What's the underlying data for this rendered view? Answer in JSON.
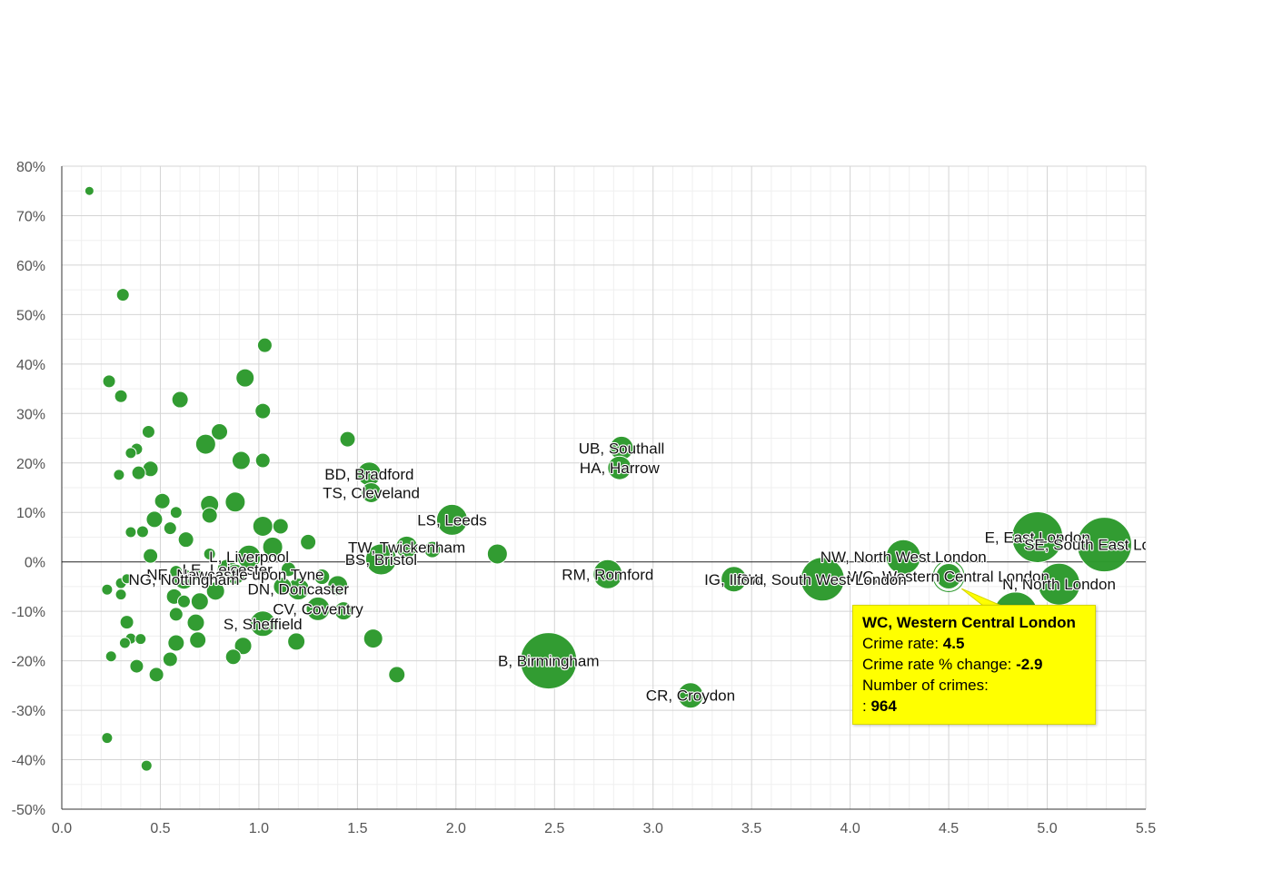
{
  "chart_data": {
    "type": "scatter",
    "xlim": [
      0,
      5.5
    ],
    "ylim": [
      -50,
      80
    ],
    "x_ticks": [
      "0.0",
      "0.5",
      "1.0",
      "1.5",
      "2.0",
      "2.5",
      "3.0",
      "3.5",
      "4.0",
      "4.5",
      "5.0",
      "5.5"
    ],
    "y_ticks": [
      "80%",
      "70%",
      "60%",
      "50%",
      "40%",
      "30%",
      "20%",
      "10%",
      "0%",
      "-10%",
      "-20%",
      "-30%",
      "-40%",
      "-50%"
    ],
    "grid": true,
    "color": "#2e9a2e",
    "labeled_points": [
      {
        "label": "UB, Southall",
        "x": 2.84,
        "y": 23.0,
        "size": 26
      },
      {
        "label": "HA, Harrow",
        "x": 2.83,
        "y": 19.0,
        "size": 26
      },
      {
        "label": "BD, Bradford",
        "x": 1.56,
        "y": 17.8,
        "size": 26
      },
      {
        "label": "TS, Cleveland",
        "x": 1.57,
        "y": 14.0,
        "size": 22
      },
      {
        "label": "LS, Leeds",
        "x": 1.98,
        "y": 8.5,
        "size": 34
      },
      {
        "label": "TW, Twickenham",
        "x": 1.75,
        "y": 3.0,
        "size": 24
      },
      {
        "label": "BS, Bristol",
        "x": 1.62,
        "y": 0.5,
        "size": 34
      },
      {
        "label": "E, East London",
        "x": 4.95,
        "y": 5.0,
        "size": 56
      },
      {
        "label": "SE, South East London",
        "x": 5.29,
        "y": 3.5,
        "size": 60
      },
      {
        "label": "NW, North West London",
        "x": 4.27,
        "y": 1.0,
        "size": 38
      },
      {
        "label": "WC, Western Central London",
        "x": 4.5,
        "y": -2.9,
        "size": 28
      },
      {
        "label": "N, North London",
        "x": 5.06,
        "y": -4.5,
        "size": 46
      },
      {
        "label": "SW, South West London",
        "x": 3.86,
        "y": -3.5,
        "size": 48
      },
      {
        "label": "IG, Ilford",
        "x": 3.41,
        "y": -3.5,
        "size": 28
      },
      {
        "label": "RM, Romford",
        "x": 2.77,
        "y": -2.5,
        "size": 32
      },
      {
        "label": "B, Birmingham",
        "x": 2.47,
        "y": -20.0,
        "size": 62
      },
      {
        "label": "CR, Croydon",
        "x": 3.19,
        "y": -27.0,
        "size": 28
      },
      {
        "label": "L, Liverpool",
        "x": 0.95,
        "y": 1.0,
        "size": 26
      },
      {
        "label": "LE, Leicester",
        "x": 0.84,
        "y": -1.5,
        "size": 22
      },
      {
        "label": "NE, Newcastle upon Tyne",
        "x": 0.88,
        "y": -2.5,
        "size": 22
      },
      {
        "label": "NG, Nottingham",
        "x": 0.62,
        "y": -3.5,
        "size": 22
      },
      {
        "label": "DN, Doncaster",
        "x": 1.2,
        "y": -5.5,
        "size": 24
      },
      {
        "label": "CV, Coventry",
        "x": 1.3,
        "y": -9.5,
        "size": 26
      },
      {
        "label": "S, Sheffield",
        "x": 1.02,
        "y": -12.5,
        "size": 28
      }
    ],
    "points": [
      {
        "x": 0.14,
        "y": 75,
        "size": 10
      },
      {
        "x": 0.31,
        "y": 54,
        "size": 14
      },
      {
        "x": 1.03,
        "y": 43.8,
        "size": 16
      },
      {
        "x": 0.24,
        "y": 36.5,
        "size": 14
      },
      {
        "x": 0.93,
        "y": 37.2,
        "size": 20
      },
      {
        "x": 0.3,
        "y": 33.5,
        "size": 14
      },
      {
        "x": 0.6,
        "y": 32.8,
        "size": 18
      },
      {
        "x": 1.02,
        "y": 30.5,
        "size": 17
      },
      {
        "x": 0.44,
        "y": 26.3,
        "size": 14
      },
      {
        "x": 0.8,
        "y": 26.3,
        "size": 18
      },
      {
        "x": 0.73,
        "y": 23.8,
        "size": 22
      },
      {
        "x": 1.45,
        "y": 24.8,
        "size": 17
      },
      {
        "x": 0.38,
        "y": 22.8,
        "size": 13
      },
      {
        "x": 0.35,
        "y": 22.0,
        "size": 12
      },
      {
        "x": 0.91,
        "y": 20.5,
        "size": 20
      },
      {
        "x": 1.02,
        "y": 20.5,
        "size": 16
      },
      {
        "x": 0.45,
        "y": 18.8,
        "size": 17
      },
      {
        "x": 0.39,
        "y": 18.0,
        "size": 15
      },
      {
        "x": 0.29,
        "y": 17.6,
        "size": 12
      },
      {
        "x": 0.51,
        "y": 12.3,
        "size": 17
      },
      {
        "x": 0.75,
        "y": 11.6,
        "size": 20
      },
      {
        "x": 0.88,
        "y": 12.1,
        "size": 22
      },
      {
        "x": 0.58,
        "y": 10.0,
        "size": 13
      },
      {
        "x": 0.75,
        "y": 9.4,
        "size": 17
      },
      {
        "x": 0.47,
        "y": 8.6,
        "size": 18
      },
      {
        "x": 1.02,
        "y": 7.2,
        "size": 22
      },
      {
        "x": 1.11,
        "y": 7.2,
        "size": 17
      },
      {
        "x": 0.55,
        "y": 6.8,
        "size": 14
      },
      {
        "x": 0.41,
        "y": 6.1,
        "size": 13
      },
      {
        "x": 0.35,
        "y": 6.0,
        "size": 12
      },
      {
        "x": 0.63,
        "y": 4.5,
        "size": 17
      },
      {
        "x": 1.25,
        "y": 4.0,
        "size": 17
      },
      {
        "x": 1.07,
        "y": 3.0,
        "size": 22
      },
      {
        "x": 0.45,
        "y": 1.2,
        "size": 16
      },
      {
        "x": 0.75,
        "y": 1.6,
        "size": 13
      },
      {
        "x": 1.88,
        "y": 2.5,
        "size": 18
      },
      {
        "x": 2.21,
        "y": 1.6,
        "size": 22
      },
      {
        "x": 1.15,
        "y": -1.5,
        "size": 16
      },
      {
        "x": 1.32,
        "y": -3.0,
        "size": 17
      },
      {
        "x": 0.58,
        "y": -2.0,
        "size": 14
      },
      {
        "x": 0.68,
        "y": -2.4,
        "size": 14
      },
      {
        "x": 0.33,
        "y": -3.4,
        "size": 11
      },
      {
        "x": 0.3,
        "y": -4.3,
        "size": 12
      },
      {
        "x": 0.23,
        "y": -5.6,
        "size": 12
      },
      {
        "x": 0.3,
        "y": -6.6,
        "size": 12
      },
      {
        "x": 1.4,
        "y": -4.8,
        "size": 22
      },
      {
        "x": 1.12,
        "y": -5.0,
        "size": 20
      },
      {
        "x": 0.78,
        "y": -5.9,
        "size": 20
      },
      {
        "x": 0.57,
        "y": -7.0,
        "size": 17
      },
      {
        "x": 0.7,
        "y": -8.0,
        "size": 19
      },
      {
        "x": 0.62,
        "y": -8.0,
        "size": 14
      },
      {
        "x": 0.58,
        "y": -10.6,
        "size": 15
      },
      {
        "x": 1.43,
        "y": -9.9,
        "size": 20
      },
      {
        "x": 0.33,
        "y": -12.2,
        "size": 15
      },
      {
        "x": 0.68,
        "y": -12.3,
        "size": 19
      },
      {
        "x": 0.35,
        "y": -15.5,
        "size": 12
      },
      {
        "x": 0.4,
        "y": -15.6,
        "size": 12
      },
      {
        "x": 0.32,
        "y": -16.4,
        "size": 12
      },
      {
        "x": 0.58,
        "y": -16.4,
        "size": 18
      },
      {
        "x": 0.69,
        "y": -15.8,
        "size": 18
      },
      {
        "x": 0.92,
        "y": -17.0,
        "size": 19
      },
      {
        "x": 1.19,
        "y": -16.1,
        "size": 19
      },
      {
        "x": 1.58,
        "y": -15.5,
        "size": 21
      },
      {
        "x": 0.25,
        "y": -19.1,
        "size": 12
      },
      {
        "x": 0.55,
        "y": -19.7,
        "size": 16
      },
      {
        "x": 0.87,
        "y": -19.2,
        "size": 17
      },
      {
        "x": 0.38,
        "y": -21.1,
        "size": 15
      },
      {
        "x": 0.48,
        "y": -22.8,
        "size": 16
      },
      {
        "x": 1.7,
        "y": -22.8,
        "size": 18
      },
      {
        "x": 0.23,
        "y": -35.6,
        "size": 12
      },
      {
        "x": 0.43,
        "y": -41.2,
        "size": 12
      },
      {
        "x": 4.84,
        "y": -10.5,
        "size": 48
      }
    ],
    "tooltip": {
      "title": "WC, Western Central London",
      "rate_label": "Crime rate: ",
      "rate_value": "4.5",
      "change_label": "Crime rate % change: ",
      "change_value": "-2.9",
      "crimes_label": "Number of crimes:",
      "crimes_prefix": ": ",
      "crimes_value": "964"
    }
  }
}
